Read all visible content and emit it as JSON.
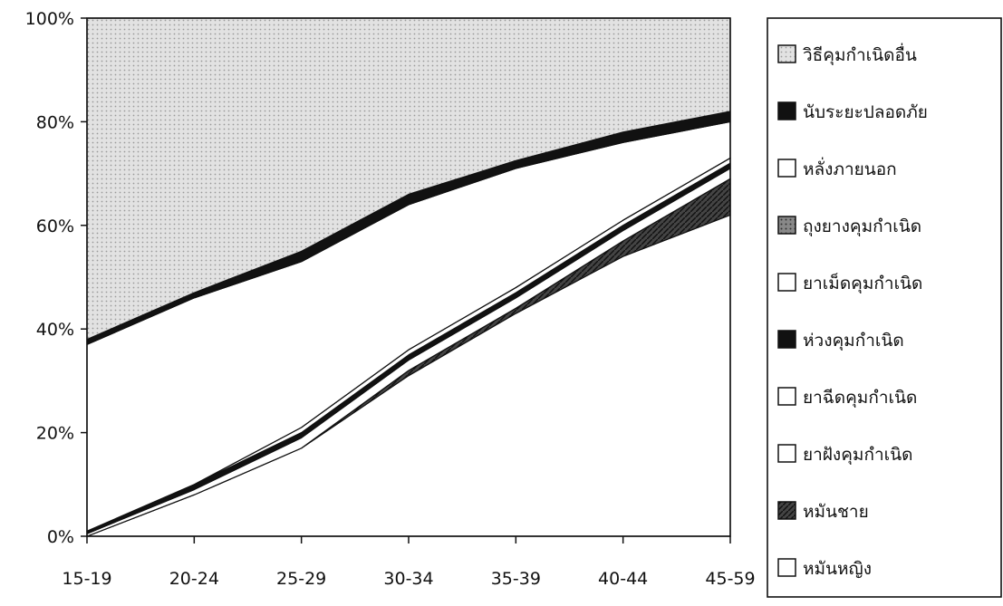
{
  "chart_data": {
    "type": "area",
    "stacked": true,
    "normalized": true,
    "categories": [
      "15-19",
      "20-24",
      "25-29",
      "30-34",
      "35-39",
      "40-44",
      "45-59"
    ],
    "y_ticks": [
      "0%",
      "20%",
      "40%",
      "60%",
      "80%",
      "100%"
    ],
    "ylim": [
      0,
      100
    ],
    "legend_position": "right",
    "series": [
      {
        "name": "หมันหญิง",
        "values": [
          0,
          8,
          17,
          31,
          43,
          54,
          62
        ],
        "fill": "#ffffff",
        "line": "#111111"
      },
      {
        "name": "หมันชาย",
        "values": [
          0,
          0,
          0,
          1,
          1,
          3,
          7
        ],
        "fill": "#3a3a3a",
        "line": "#111111"
      },
      {
        "name": "ยาฝังคุมกำเนิด",
        "values": [
          0,
          0,
          0,
          0,
          0,
          0,
          0
        ],
        "fill": "#ffffff",
        "line": "#111111"
      },
      {
        "name": "ยาฉีดคุมกำเนิด",
        "values": [
          0.5,
          1,
          2,
          2,
          2,
          2,
          2
        ],
        "fill": "#ffffff",
        "line": "#111111"
      },
      {
        "name": "ห่วงคุมกำเนิด",
        "values": [
          0.5,
          1,
          1,
          1,
          1,
          1,
          1
        ],
        "fill": "#111111",
        "line": "#111111"
      },
      {
        "name": "ยาเม็ดคุมกำเนิด",
        "values": [
          0,
          0,
          1,
          1,
          1,
          1,
          1
        ],
        "fill": "#ffffff",
        "line": "#111111"
      },
      {
        "name": "ถุงยางคุมกำเนิด",
        "values": [
          0,
          0,
          0,
          0,
          0,
          0,
          0
        ],
        "fill": "#6a6a6a",
        "line": "#111111"
      },
      {
        "name": "หลั่งภายนอก",
        "values": [
          36,
          36,
          32,
          28,
          23,
          15,
          7
        ],
        "fill": "#ffffff",
        "line": "#111111"
      },
      {
        "name": "นับระยะปลอดภัย",
        "values": [
          1,
          1,
          2,
          2,
          1.5,
          2,
          2
        ],
        "fill": "#111111",
        "line": "#111111"
      },
      {
        "name": "วิธีคุมกำเนิดอื่น",
        "values": [
          62,
          53,
          45,
          34,
          27.5,
          22,
          18
        ],
        "fill": "#d8d8d8",
        "line": "#111111"
      }
    ],
    "legend_order": [
      "วิธีคุมกำเนิดอื่น",
      "นับระยะปลอดภัย",
      "หลั่งภายนอก",
      "ถุงยางคุมกำเนิด",
      "ยาเม็ดคุมกำเนิด",
      "ห่วงคุมกำเนิด",
      "ยาฉีดคุมกำเนิด",
      "ยาฝังคุมกำเนิด",
      "หมันชาย",
      "หมันหญิง"
    ]
  }
}
